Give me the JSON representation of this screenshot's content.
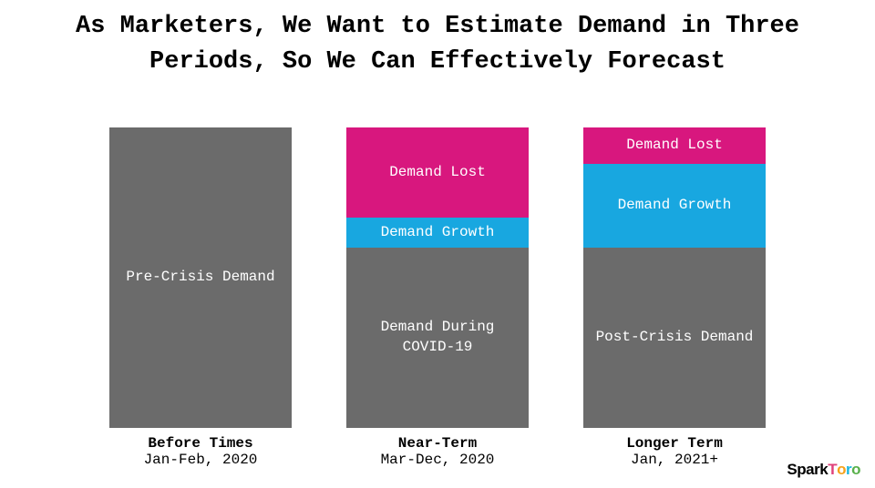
{
  "title": "As Marketers, We Want to Estimate Demand in Three Periods, So We Can Effectively Forecast",
  "title_fontsize": 27,
  "background_color": "#ffffff",
  "segment_label_color": "#ffffff",
  "segment_fontsize": 16,
  "axis_label_fontsize": 16,
  "colors": {
    "grey": "#6b6b6b",
    "blue": "#18a7e0",
    "pink": "#d8177e"
  },
  "columns": [
    {
      "title": "Before Times",
      "subtitle": "Jan-Feb, 2020",
      "segments": [
        {
          "label": "Pre-Crisis Demand",
          "height_pct": 100,
          "color": "#6b6b6b"
        }
      ]
    },
    {
      "title": "Near-Term",
      "subtitle": "Mar-Dec, 2020",
      "segments": [
        {
          "label": "Demand Lost",
          "height_pct": 30,
          "color": "#d8177e"
        },
        {
          "label": "Demand Growth",
          "height_pct": 10,
          "color": "#18a7e0"
        },
        {
          "label": "Demand During COVID-19",
          "height_pct": 60,
          "color": "#6b6b6b"
        }
      ]
    },
    {
      "title": "Longer Term",
      "subtitle": "Jan, 2021+",
      "segments": [
        {
          "label": "Demand Lost",
          "height_pct": 12,
          "color": "#d8177e"
        },
        {
          "label": "Demand Growth",
          "height_pct": 28,
          "color": "#18a7e0"
        },
        {
          "label": "Post-Crisis Demand",
          "height_pct": 60,
          "color": "#6b6b6b"
        }
      ]
    }
  ],
  "logo": {
    "text": "SparkToro",
    "fontsize": 17,
    "letter_colors": [
      "#000000",
      "#000000",
      "#000000",
      "#000000",
      "#000000",
      "#e0417a",
      "#f6a21b",
      "#19b6e0",
      "#58b04a"
    ]
  }
}
